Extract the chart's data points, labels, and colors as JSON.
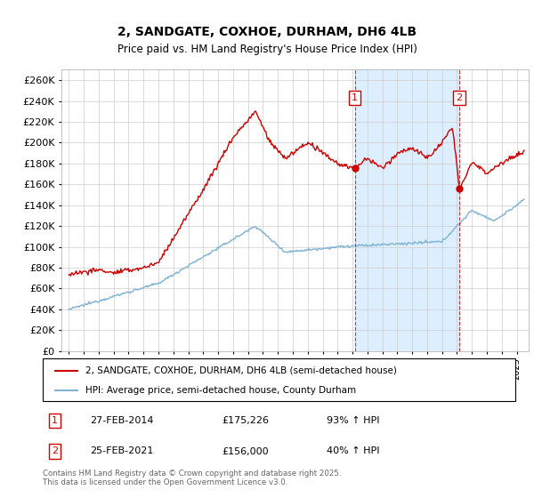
{
  "title": "2, SANDGATE, COXHOE, DURHAM, DH6 4LB",
  "subtitle": "Price paid vs. HM Land Registry's House Price Index (HPI)",
  "legend_line1": "2, SANDGATE, COXHOE, DURHAM, DH6 4LB (semi-detached house)",
  "legend_line2": "HPI: Average price, semi-detached house, County Durham",
  "sale1_date": "27-FEB-2014",
  "sale1_price": "£175,226",
  "sale1_hpi": "93% ↑ HPI",
  "sale2_date": "25-FEB-2021",
  "sale2_price": "£156,000",
  "sale2_hpi": "40% ↑ HPI",
  "footnote1": "Contains HM Land Registry data © Crown copyright and database right 2025.",
  "footnote2": "This data is licensed under the Open Government Licence v3.0.",
  "red_color": "#cc0000",
  "blue_color": "#7fb3d3",
  "shade_color": "#ddeeff",
  "ylim": [
    0,
    270000
  ],
  "yticks": [
    0,
    20000,
    40000,
    60000,
    80000,
    100000,
    120000,
    140000,
    160000,
    180000,
    200000,
    220000,
    240000,
    260000
  ],
  "sale1_x": 2014.15,
  "sale2_x": 2021.15,
  "xmin": 1994.5,
  "xmax": 2025.8
}
